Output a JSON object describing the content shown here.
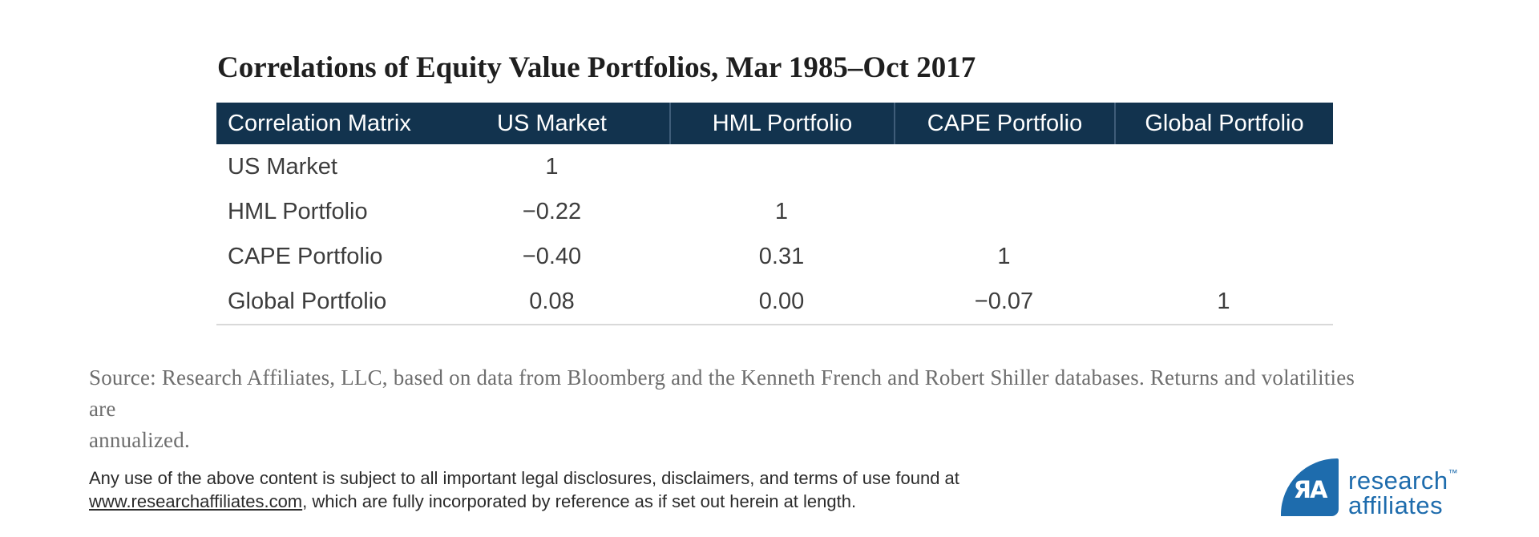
{
  "title": "Correlations of Equity Value Portfolios, Mar 1985–Oct 2017",
  "table": {
    "headers": [
      "Correlation Matrix",
      "US Market",
      "HML Portfolio",
      "CAPE Portfolio",
      "Global Portfolio"
    ],
    "rows": [
      {
        "label": "US Market",
        "values": [
          "1",
          "",
          "",
          ""
        ]
      },
      {
        "label": "HML Portfolio",
        "values": [
          "−0.22",
          "1",
          "",
          ""
        ]
      },
      {
        "label": "CAPE Portfolio",
        "values": [
          "−0.40",
          "0.31",
          "1",
          ""
        ]
      },
      {
        "label": "Global Portfolio",
        "values": [
          "0.08",
          "0.00",
          "−0.07",
          "1"
        ]
      }
    ]
  },
  "chart_data": {
    "type": "table",
    "title": "Correlations of Equity Value Portfolios, Mar 1985–Oct 2017",
    "columns": [
      "Correlation Matrix",
      "US Market",
      "HML Portfolio",
      "CAPE Portfolio",
      "Global Portfolio"
    ],
    "rows": [
      [
        "US Market",
        1,
        null,
        null,
        null
      ],
      [
        "HML Portfolio",
        -0.22,
        1,
        null,
        null
      ],
      [
        "CAPE Portfolio",
        -0.4,
        0.31,
        1,
        null
      ],
      [
        "Global Portfolio",
        0.08,
        0.0,
        -0.07,
        1
      ]
    ]
  },
  "source_note": {
    "line1": "Source: Research Affiliates, LLC, based on data from Bloomberg and the Kenneth French and Robert Shiller databases. Returns and volatilities are",
    "line2": "annualized."
  },
  "legal": {
    "line1": "Any use of the above content is subject to all important legal disclosures, disclaimers, and terms of use found at",
    "link_text": "www.researchaffiliates.com",
    "line2_after_link": ", which are fully incorporated by reference as if set out herein at length."
  },
  "logo": {
    "monogram": "ЯA",
    "word1": "research",
    "word2": "affiliates",
    "tm": "™"
  },
  "colors": {
    "header_bg": "#12334e",
    "divider_blue": "#3f5d79",
    "text_dark": "#3d3d3d",
    "source_gray": "#6e6e6e",
    "legal_dark": "#2b2b2b",
    "rule_gray": "#d9d9d9",
    "brand_blue": "#1e6cad"
  }
}
